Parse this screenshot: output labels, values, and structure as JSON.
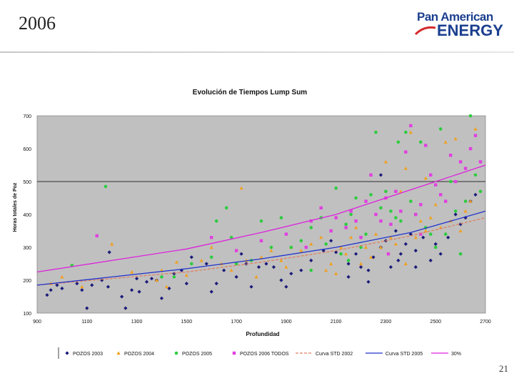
{
  "slide": {
    "year": "2006",
    "page_number": "21",
    "logo_line1": "Pan American",
    "logo_line2": "ENERGY",
    "brand_color": "#1b3f8f"
  },
  "chart_data": {
    "type": "scatter",
    "title": "Evolución de Tiempos Lump Sum",
    "xlabel": "Profundidad",
    "ylabel": "Horas totales de Poz",
    "xlim": [
      900,
      2700
    ],
    "ylim": [
      100,
      700
    ],
    "xticks": [
      900,
      1100,
      1300,
      1500,
      1700,
      1900,
      2100,
      2300,
      2500,
      2700
    ],
    "yticks": [
      100,
      200,
      300,
      400,
      500,
      600,
      700
    ],
    "reference_line_y": 500,
    "plot_background": "#c0c0c0",
    "legend_position": "bottom",
    "series": [
      {
        "name": "POZOS 2003",
        "marker": "diamond",
        "color": "#1a1a7a",
        "points": [
          [
            940,
            155
          ],
          [
            955,
            170
          ],
          [
            980,
            185
          ],
          [
            1000,
            175
          ],
          [
            1060,
            190
          ],
          [
            1080,
            170
          ],
          [
            1100,
            115
          ],
          [
            1120,
            185
          ],
          [
            1160,
            200
          ],
          [
            1185,
            180
          ],
          [
            1190,
            285
          ],
          [
            1240,
            150
          ],
          [
            1255,
            115
          ],
          [
            1280,
            170
          ],
          [
            1300,
            205
          ],
          [
            1310,
            165
          ],
          [
            1340,
            195
          ],
          [
            1360,
            205
          ],
          [
            1380,
            200
          ],
          [
            1400,
            145
          ],
          [
            1430,
            175
          ],
          [
            1450,
            220
          ],
          [
            1480,
            230
          ],
          [
            1500,
            190
          ],
          [
            1520,
            270
          ],
          [
            1580,
            250
          ],
          [
            1600,
            165
          ],
          [
            1620,
            190
          ],
          [
            1650,
            230
          ],
          [
            1700,
            210
          ],
          [
            1720,
            280
          ],
          [
            1740,
            250
          ],
          [
            1760,
            180
          ],
          [
            1790,
            240
          ],
          [
            1820,
            250
          ],
          [
            1850,
            240
          ],
          [
            1880,
            200
          ],
          [
            1900,
            180
          ],
          [
            1920,
            220
          ],
          [
            1960,
            230
          ],
          [
            2000,
            260
          ],
          [
            2050,
            290
          ],
          [
            2080,
            320
          ],
          [
            2100,
            285
          ],
          [
            2150,
            250
          ],
          [
            2180,
            280
          ],
          [
            2200,
            240
          ],
          [
            2230,
            230
          ],
          [
            2250,
            270
          ],
          [
            2280,
            300
          ],
          [
            2300,
            320
          ],
          [
            2320,
            240
          ],
          [
            2340,
            350
          ],
          [
            2360,
            280
          ],
          [
            2380,
            310
          ],
          [
            2400,
            340
          ],
          [
            2420,
            290
          ],
          [
            2450,
            330
          ],
          [
            2480,
            260
          ],
          [
            2500,
            310
          ],
          [
            2520,
            280
          ],
          [
            2550,
            330
          ],
          [
            2580,
            400
          ],
          [
            2600,
            370
          ],
          [
            2620,
            390
          ],
          [
            2640,
            440
          ],
          [
            2660,
            460
          ],
          [
            2280,
            520
          ],
          [
            2350,
            260
          ],
          [
            2230,
            195
          ],
          [
            2150,
            210
          ],
          [
            2420,
            240
          ]
        ]
      },
      {
        "name": "POZOS 2004",
        "marker": "triangle",
        "color": "#f0a020",
        "points": [
          [
            955,
            190
          ],
          [
            1000,
            210
          ],
          [
            1080,
            180
          ],
          [
            1200,
            310
          ],
          [
            1280,
            225
          ],
          [
            1380,
            200
          ],
          [
            1400,
            230
          ],
          [
            1420,
            180
          ],
          [
            1460,
            255
          ],
          [
            1500,
            215
          ],
          [
            1560,
            260
          ],
          [
            1600,
            300
          ],
          [
            1640,
            250
          ],
          [
            1680,
            230
          ],
          [
            1720,
            480
          ],
          [
            1740,
            260
          ],
          [
            1780,
            210
          ],
          [
            1800,
            270
          ],
          [
            1840,
            290
          ],
          [
            1880,
            260
          ],
          [
            1900,
            240
          ],
          [
            1920,
            300
          ],
          [
            1960,
            290
          ],
          [
            2000,
            310
          ],
          [
            2040,
            330
          ],
          [
            2060,
            230
          ],
          [
            2080,
            250
          ],
          [
            2100,
            220
          ],
          [
            2120,
            300
          ],
          [
            2140,
            280
          ],
          [
            2160,
            330
          ],
          [
            2180,
            360
          ],
          [
            2200,
            250
          ],
          [
            2220,
            300
          ],
          [
            2240,
            270
          ],
          [
            2260,
            340
          ],
          [
            2280,
            300
          ],
          [
            2300,
            560
          ],
          [
            2320,
            330
          ],
          [
            2340,
            310
          ],
          [
            2360,
            470
          ],
          [
            2380,
            250
          ],
          [
            2400,
            650
          ],
          [
            2420,
            330
          ],
          [
            2440,
            380
          ],
          [
            2460,
            350
          ],
          [
            2480,
            390
          ],
          [
            2500,
            430
          ],
          [
            2520,
            360
          ],
          [
            2540,
            620
          ],
          [
            2560,
            380
          ],
          [
            2580,
            630
          ],
          [
            2600,
            350
          ],
          [
            2620,
            410
          ],
          [
            2640,
            440
          ],
          [
            2660,
            660
          ],
          [
            2460,
            510
          ],
          [
            2380,
            540
          ],
          [
            2300,
            450
          ]
        ]
      },
      {
        "name": "POZOS 2005",
        "marker": "circle",
        "color": "#2ecc40",
        "points": [
          [
            1040,
            245
          ],
          [
            1175,
            485
          ],
          [
            1400,
            210
          ],
          [
            1450,
            210
          ],
          [
            1520,
            250
          ],
          [
            1600,
            270
          ],
          [
            1620,
            380
          ],
          [
            1660,
            420
          ],
          [
            1680,
            330
          ],
          [
            1700,
            250
          ],
          [
            1760,
            260
          ],
          [
            1800,
            380
          ],
          [
            1840,
            300
          ],
          [
            1880,
            390
          ],
          [
            1920,
            300
          ],
          [
            1960,
            320
          ],
          [
            2000,
            360
          ],
          [
            2040,
            390
          ],
          [
            2060,
            310
          ],
          [
            2100,
            480
          ],
          [
            2120,
            280
          ],
          [
            2140,
            370
          ],
          [
            2160,
            400
          ],
          [
            2180,
            450
          ],
          [
            2200,
            300
          ],
          [
            2220,
            340
          ],
          [
            2240,
            460
          ],
          [
            2260,
            650
          ],
          [
            2280,
            420
          ],
          [
            2300,
            470
          ],
          [
            2320,
            410
          ],
          [
            2340,
            390
          ],
          [
            2360,
            380
          ],
          [
            2380,
            650
          ],
          [
            2400,
            440
          ],
          [
            2420,
            400
          ],
          [
            2440,
            620
          ],
          [
            2460,
            360
          ],
          [
            2480,
            340
          ],
          [
            2500,
            300
          ],
          [
            2520,
            660
          ],
          [
            2540,
            340
          ],
          [
            2560,
            500
          ],
          [
            2580,
            410
          ],
          [
            2600,
            280
          ],
          [
            2620,
            440
          ],
          [
            2640,
            700
          ],
          [
            2660,
            520
          ],
          [
            2680,
            470
          ],
          [
            2350,
            620
          ],
          [
            2150,
            260
          ],
          [
            2000,
            230
          ]
        ]
      },
      {
        "name": "POZOS 2006 TODOS",
        "marker": "square",
        "color": "#e040e0",
        "points": [
          [
            1140,
            335
          ],
          [
            1600,
            330
          ],
          [
            1700,
            290
          ],
          [
            1800,
            320
          ],
          [
            1900,
            340
          ],
          [
            1980,
            300
          ],
          [
            2000,
            380
          ],
          [
            2040,
            420
          ],
          [
            2080,
            350
          ],
          [
            2100,
            390
          ],
          [
            2140,
            360
          ],
          [
            2160,
            410
          ],
          [
            2180,
            380
          ],
          [
            2200,
            330
          ],
          [
            2220,
            440
          ],
          [
            2240,
            520
          ],
          [
            2260,
            400
          ],
          [
            2280,
            380
          ],
          [
            2300,
            450
          ],
          [
            2320,
            370
          ],
          [
            2340,
            470
          ],
          [
            2360,
            410
          ],
          [
            2380,
            590
          ],
          [
            2400,
            670
          ],
          [
            2420,
            400
          ],
          [
            2440,
            430
          ],
          [
            2460,
            610
          ],
          [
            2480,
            520
          ],
          [
            2500,
            490
          ],
          [
            2520,
            460
          ],
          [
            2540,
            440
          ],
          [
            2560,
            580
          ],
          [
            2580,
            500
          ],
          [
            2600,
            560
          ],
          [
            2620,
            540
          ],
          [
            2640,
            600
          ],
          [
            2660,
            640
          ],
          [
            2680,
            560
          ],
          [
            2440,
            340
          ],
          [
            2310,
            280
          ]
        ]
      }
    ],
    "lines": [
      {
        "name": "Curva STD 2002",
        "color": "#e08060",
        "style": "dashed",
        "x": [
          900,
          1200,
          1500,
          1800,
          2100,
          2400,
          2700
        ],
        "y": [
          185,
          205,
          225,
          255,
          290,
          335,
          390
        ]
      },
      {
        "name": "Curva STD 2005",
        "color": "#2233cc",
        "style": "solid",
        "x": [
          900,
          1200,
          1500,
          1800,
          2100,
          2400,
          2700
        ],
        "y": [
          185,
          210,
          235,
          265,
          300,
          345,
          410
        ]
      },
      {
        "name": "30%",
        "color": "#dd22dd",
        "style": "solid",
        "x": [
          900,
          1200,
          1500,
          1800,
          2100,
          2400,
          2700
        ],
        "y": [
          225,
          260,
          295,
          345,
          400,
          475,
          550
        ]
      }
    ]
  }
}
